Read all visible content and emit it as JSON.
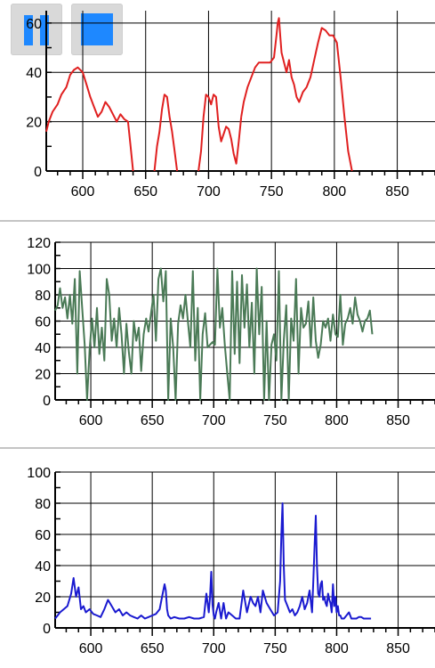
{
  "controls": {
    "pause": {
      "icon": "pause-icon",
      "color": "#1e88ff"
    },
    "stop": {
      "icon": "stop-icon",
      "color": "#1e88ff"
    }
  },
  "chart_data": [
    {
      "type": "line",
      "color": "#e02020",
      "xlim": [
        571,
        880
      ],
      "ylim": [
        0,
        65
      ],
      "xticks": [
        600,
        650,
        700,
        750,
        800,
        850
      ],
      "yticks": [
        0,
        20,
        40,
        60
      ],
      "grid": true,
      "segments": [
        {
          "x": [
            571,
            573,
            576,
            580,
            583,
            587,
            590,
            593,
            596,
            600,
            603,
            606,
            609,
            612,
            615,
            618,
            621,
            624,
            627,
            630,
            633,
            636,
            638,
            640
          ],
          "y": [
            16,
            20,
            24,
            27,
            31,
            34,
            39,
            41,
            42,
            40,
            35,
            30,
            26,
            22,
            24,
            28,
            26,
            23,
            20,
            23,
            21,
            20,
            10,
            0
          ]
        },
        {
          "x": [
            657,
            659,
            661,
            663,
            665,
            667,
            669,
            671,
            673,
            675
          ],
          "y": [
            0,
            10,
            16,
            25,
            31,
            30,
            22,
            16,
            8,
            0
          ]
        },
        {
          "x": [
            692,
            694,
            696,
            698,
            700,
            702,
            704,
            706,
            708,
            710,
            712,
            714,
            716,
            718,
            720,
            722,
            724,
            726
          ],
          "y": [
            0,
            8,
            22,
            31,
            30,
            27,
            31,
            30,
            18,
            12,
            15,
            18,
            17,
            13,
            7,
            3,
            12,
            22
          ]
        },
        {
          "x": [
            726,
            728,
            731,
            734,
            737,
            740,
            743,
            746,
            749,
            752,
            754,
            755,
            756,
            757,
            758,
            760,
            762,
            764,
            766,
            768,
            770,
            772,
            775,
            778,
            781,
            784,
            787,
            790,
            793,
            796,
            799,
            802,
            805,
            808,
            811,
            814
          ],
          "y": [
            22,
            28,
            34,
            38,
            42,
            44,
            44,
            44,
            44,
            46,
            55,
            60,
            62,
            55,
            48,
            44,
            40,
            45,
            38,
            35,
            30,
            28,
            32,
            34,
            38,
            45,
            52,
            58,
            57,
            55,
            55,
            52,
            38,
            22,
            8,
            0
          ]
        }
      ]
    },
    {
      "type": "line",
      "color": "#4a7a56",
      "xlim": [
        571,
        880
      ],
      "ylim": [
        0,
        120
      ],
      "xticks": [
        600,
        650,
        700,
        750,
        800,
        850
      ],
      "yticks": [
        0,
        20,
        40,
        60,
        80,
        100,
        120
      ],
      "grid": true,
      "x": [
        571,
        573,
        575,
        577,
        579,
        581,
        583,
        585,
        587,
        589,
        591,
        593,
        595,
        597,
        599,
        601,
        603,
        605,
        607,
        609,
        611,
        613,
        615,
        617,
        619,
        621,
        623,
        625,
        627,
        629,
        631,
        633,
        635,
        637,
        639,
        641,
        643,
        645,
        647,
        649,
        651,
        653,
        655,
        657,
        659,
        661,
        663,
        665,
        667,
        669,
        671,
        673,
        675,
        677,
        679,
        681,
        683,
        685,
        687,
        689,
        691,
        693,
        695,
        697,
        699,
        701,
        703,
        705,
        707,
        709,
        711,
        713,
        715,
        717,
        719,
        721,
        723,
        725,
        727,
        729,
        731,
        733,
        735,
        737,
        739,
        741,
        743,
        745,
        747,
        749,
        751,
        753,
        755,
        757,
        759,
        761,
        763,
        765,
        767,
        769,
        771,
        773,
        775,
        777,
        779,
        781,
        783,
        785,
        787,
        789,
        791,
        793,
        795,
        797,
        799,
        801,
        803,
        805,
        807,
        809,
        811,
        813,
        815,
        817,
        819,
        821,
        823,
        825,
        827,
        829
      ],
      "y": [
        68,
        72,
        85,
        70,
        78,
        62,
        80,
        58,
        92,
        20,
        98,
        70,
        42,
        0,
        38,
        62,
        40,
        70,
        35,
        55,
        30,
        92,
        80,
        45,
        62,
        40,
        70,
        50,
        20,
        58,
        36,
        20,
        60,
        45,
        55,
        22,
        50,
        62,
        52,
        66,
        80,
        45,
        92,
        100,
        75,
        98,
        0,
        62,
        40,
        0,
        58,
        72,
        62,
        80,
        60,
        40,
        98,
        30,
        70,
        0,
        50,
        66,
        40,
        42,
        44,
        42,
        100,
        55,
        70,
        42,
        20,
        0,
        98,
        35,
        90,
        28,
        95,
        55,
        88,
        40,
        74,
        20,
        100,
        50,
        86,
        0,
        60,
        0,
        42,
        50,
        30,
        98,
        0,
        45,
        72,
        0,
        62,
        45,
        92,
        20,
        70,
        55,
        58,
        75,
        40,
        78,
        45,
        32,
        42,
        60,
        55,
        62,
        45,
        65,
        50,
        48,
        80,
        42,
        58,
        62,
        70,
        58,
        78,
        65,
        60,
        52,
        60,
        62,
        68,
        50
      ]
    },
    {
      "type": "line",
      "color": "#1a1ad0",
      "xlim": [
        571,
        880
      ],
      "ylim": [
        0,
        100
      ],
      "xticks": [
        600,
        650,
        700,
        750,
        800,
        850
      ],
      "yticks": [
        0,
        20,
        40,
        60,
        80,
        100
      ],
      "grid": true,
      "x": [
        571,
        573,
        575,
        578,
        581,
        584,
        586,
        588,
        590,
        592,
        594,
        596,
        599,
        602,
        605,
        608,
        611,
        614,
        617,
        620,
        623,
        626,
        629,
        632,
        635,
        638,
        641,
        644,
        647,
        650,
        653,
        656,
        658,
        660,
        661,
        662,
        663,
        665,
        668,
        672,
        676,
        680,
        684,
        688,
        692,
        694,
        696,
        697,
        698,
        699,
        700,
        701,
        702,
        704,
        706,
        708,
        710,
        712,
        715,
        718,
        721,
        724,
        727,
        730,
        732,
        734,
        736,
        738,
        740,
        743,
        746,
        749,
        752,
        754,
        755,
        756,
        757,
        758,
        760,
        762,
        764,
        766,
        768,
        770,
        772,
        774,
        776,
        778,
        780,
        781,
        782,
        783,
        784,
        785,
        786,
        787,
        788,
        789,
        790,
        791,
        792,
        793,
        794,
        795,
        796,
        797,
        798,
        799,
        800,
        801,
        802,
        803,
        804,
        806,
        808,
        810,
        812,
        814,
        816,
        818,
        820,
        822,
        824,
        826,
        828
      ],
      "y": [
        6,
        8,
        10,
        12,
        14,
        22,
        32,
        20,
        26,
        12,
        14,
        10,
        12,
        9,
        8,
        7,
        12,
        18,
        14,
        10,
        12,
        8,
        10,
        8,
        7,
        6,
        8,
        6,
        7,
        8,
        9,
        12,
        20,
        28,
        24,
        12,
        8,
        6,
        7,
        6,
        6,
        7,
        6,
        6,
        7,
        22,
        10,
        20,
        36,
        15,
        8,
        6,
        10,
        16,
        6,
        16,
        6,
        10,
        8,
        6,
        6,
        24,
        10,
        20,
        16,
        14,
        20,
        10,
        24,
        16,
        12,
        8,
        10,
        30,
        60,
        80,
        40,
        18,
        14,
        10,
        12,
        8,
        10,
        14,
        20,
        12,
        16,
        24,
        10,
        30,
        52,
        72,
        40,
        22,
        20,
        28,
        30,
        18,
        20,
        16,
        14,
        22,
        18,
        16,
        10,
        28,
        14,
        20,
        10,
        14,
        8,
        8,
        6,
        6,
        8,
        10,
        6,
        6,
        6,
        7,
        7,
        6,
        6,
        6,
        6
      ]
    }
  ]
}
